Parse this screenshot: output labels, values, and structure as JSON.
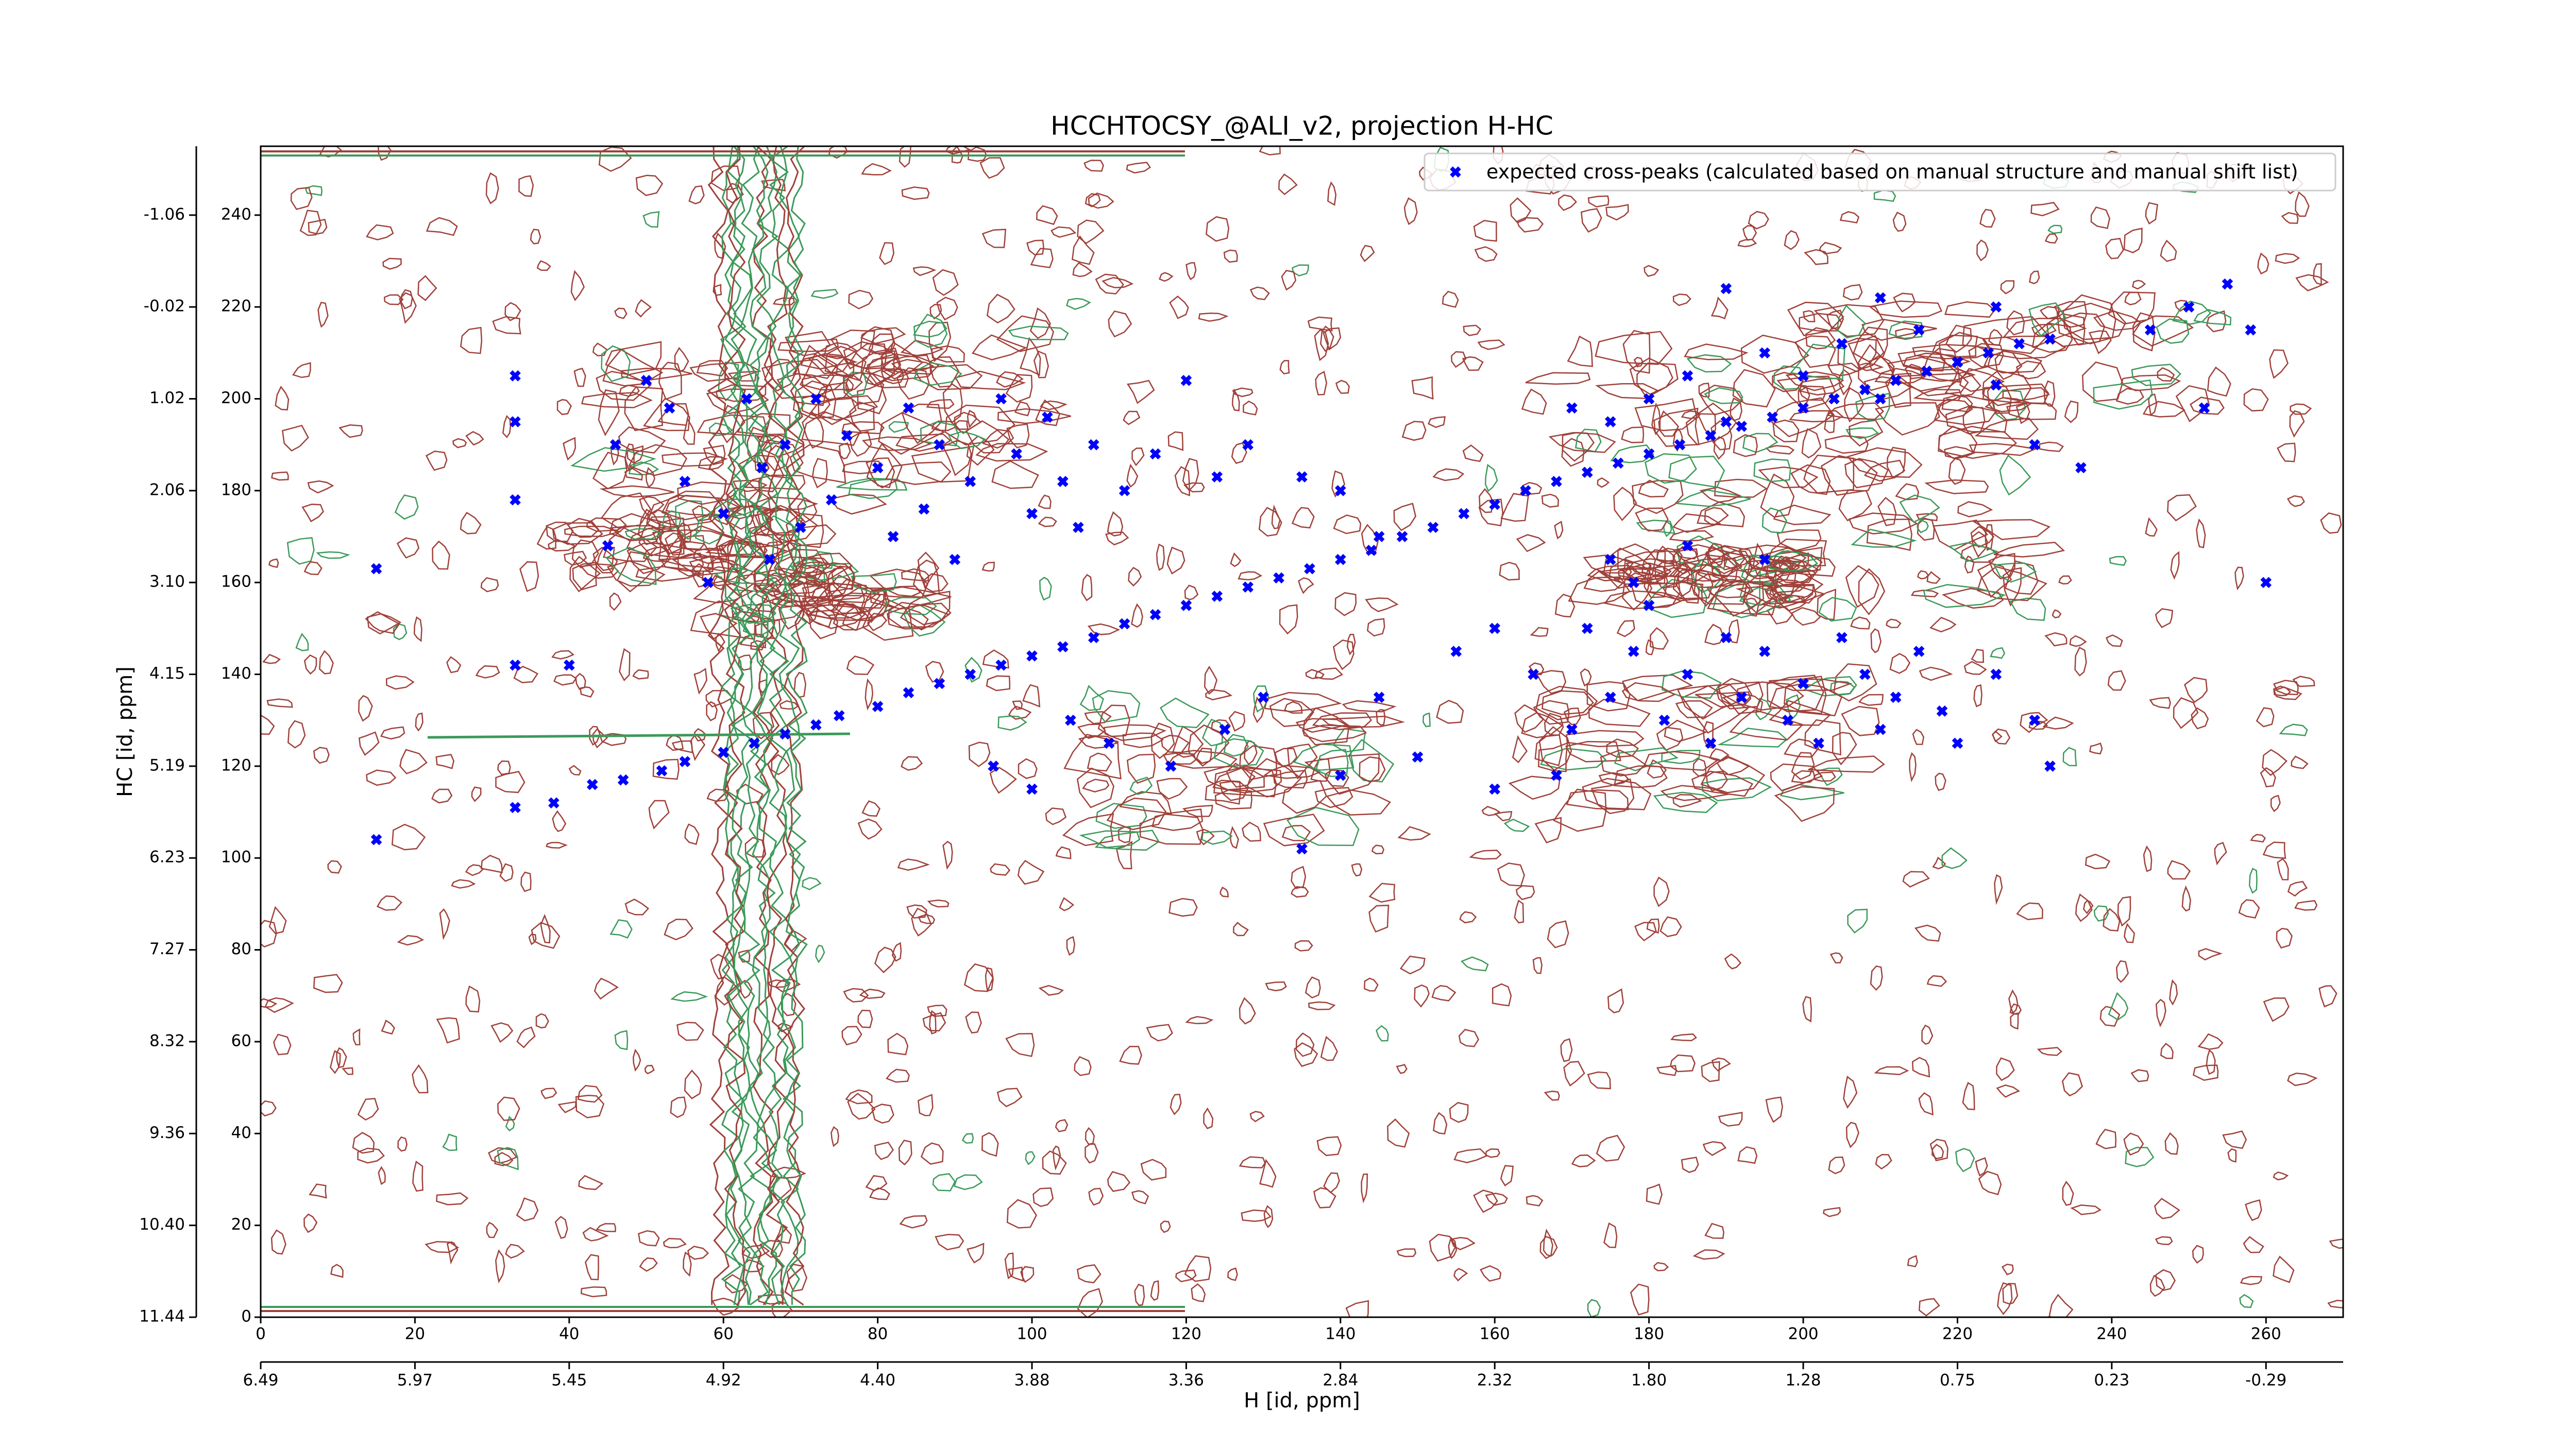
{
  "chart_data": {
    "type": "scatter",
    "title": "HCCHTOCSY_@ALI_v2, projection H-HC",
    "x_label": "H [id, ppm]",
    "y_label": "HC [id, ppm]",
    "xlim": [
      0,
      270
    ],
    "ylim": [
      0,
      255
    ],
    "xticks": [
      0,
      20,
      40,
      60,
      80,
      100,
      120,
      140,
      160,
      180,
      200,
      220,
      240,
      260
    ],
    "yticks": [
      0,
      20,
      40,
      60,
      80,
      100,
      120,
      140,
      160,
      180,
      200,
      220,
      240
    ],
    "x2ticks": [
      {
        "value": 0,
        "label": "6.49"
      },
      {
        "value": 20,
        "label": "5.97"
      },
      {
        "value": 40,
        "label": "5.45"
      },
      {
        "value": 60,
        "label": "4.92"
      },
      {
        "value": 80,
        "label": "4.40"
      },
      {
        "value": 100,
        "label": "3.88"
      },
      {
        "value": 120,
        "label": "3.36"
      },
      {
        "value": 140,
        "label": "2.84"
      },
      {
        "value": 160,
        "label": "2.32"
      },
      {
        "value": 180,
        "label": "1.80"
      },
      {
        "value": 200,
        "label": "1.28"
      },
      {
        "value": 220,
        "label": "0.75"
      },
      {
        "value": 240,
        "label": "0.23"
      },
      {
        "value": 260,
        "label": "-0.29"
      }
    ],
    "y2ticks": [
      {
        "value": 0,
        "label": "11.44"
      },
      {
        "value": 20,
        "label": "10.40"
      },
      {
        "value": 40,
        "label": "9.36"
      },
      {
        "value": 60,
        "label": "8.32"
      },
      {
        "value": 80,
        "label": "7.27"
      },
      {
        "value": 100,
        "label": "6.23"
      },
      {
        "value": 120,
        "label": "5.19"
      },
      {
        "value": 140,
        "label": "4.15"
      },
      {
        "value": 160,
        "label": "3.10"
      },
      {
        "value": 180,
        "label": "2.06"
      },
      {
        "value": 200,
        "label": "1.02"
      },
      {
        "value": 220,
        "label": "-0.02"
      },
      {
        "value": 240,
        "label": "-1.06"
      }
    ],
    "legend": "upper right",
    "series": [
      {
        "name": "expected cross-peaks (calculated based on manual structure and manual shift list)",
        "color": "#0000ff",
        "x": [
          33,
          38,
          43,
          47,
          52,
          55,
          60,
          64,
          68,
          72,
          75,
          80,
          84,
          88,
          92,
          96,
          100,
          104,
          108,
          112,
          116,
          120,
          124,
          128,
          132,
          136,
          140,
          144,
          148,
          152,
          156,
          160,
          164,
          168,
          172,
          176,
          180,
          184,
          188,
          192,
          196,
          200,
          204,
          208,
          212,
          216,
          220,
          224,
          228,
          232,
          33,
          33,
          33,
          45,
          46,
          50,
          53,
          55,
          58,
          60,
          63,
          65,
          66,
          68,
          70,
          72,
          74,
          76,
          80,
          82,
          84,
          86,
          88,
          90,
          92,
          96,
          98,
          100,
          102,
          104,
          106,
          108,
          112,
          116,
          120,
          124,
          128,
          135,
          140,
          145,
          155,
          160,
          165,
          170,
          172,
          175,
          178,
          180,
          182,
          185,
          188,
          190,
          192,
          195,
          198,
          200,
          202,
          205,
          208,
          210,
          212,
          215,
          218,
          220,
          225,
          230,
          232,
          170,
          175,
          180,
          185,
          190,
          195,
          200,
          205,
          210,
          215,
          220,
          225,
          230,
          236,
          245,
          250,
          255,
          252,
          258,
          260,
          225,
          210,
          190,
          175,
          185,
          195,
          178,
          15,
          15,
          40,
          33,
          135,
          95,
          100,
          118,
          105,
          110,
          125,
          140,
          150,
          145,
          160,
          168,
          130
        ],
        "values": [
          111,
          112,
          116,
          117,
          119,
          121,
          123,
          125,
          127,
          129,
          131,
          133,
          136,
          138,
          140,
          142,
          144,
          146,
          148,
          151,
          153,
          155,
          157,
          159,
          161,
          163,
          165,
          167,
          170,
          172,
          175,
          177,
          180,
          182,
          184,
          186,
          188,
          190,
          192,
          194,
          196,
          198,
          200,
          202,
          204,
          206,
          208,
          210,
          212,
          213,
          205,
          195,
          178,
          168,
          190,
          204,
          198,
          182,
          160,
          175,
          200,
          185,
          165,
          190,
          172,
          200,
          178,
          192,
          185,
          170,
          198,
          176,
          190,
          165,
          182,
          200,
          188,
          175,
          196,
          182,
          172,
          190,
          180,
          188,
          204,
          183,
          190,
          183,
          180,
          170,
          145,
          150,
          140,
          128,
          150,
          135,
          145,
          155,
          130,
          140,
          125,
          148,
          135,
          145,
          130,
          138,
          125,
          148,
          140,
          128,
          135,
          145,
          132,
          125,
          140,
          130,
          120,
          198,
          195,
          200,
          205,
          195,
          210,
          205,
          212,
          200,
          215,
          208,
          203,
          190,
          185,
          215,
          220,
          225,
          198,
          215,
          160,
          220,
          222,
          224,
          165,
          168,
          165,
          160,
          104,
          163,
          142,
          142,
          102,
          120,
          115,
          120,
          130,
          125,
          128,
          118,
          122,
          135,
          115,
          118,
          135
        ]
      }
    ]
  }
}
